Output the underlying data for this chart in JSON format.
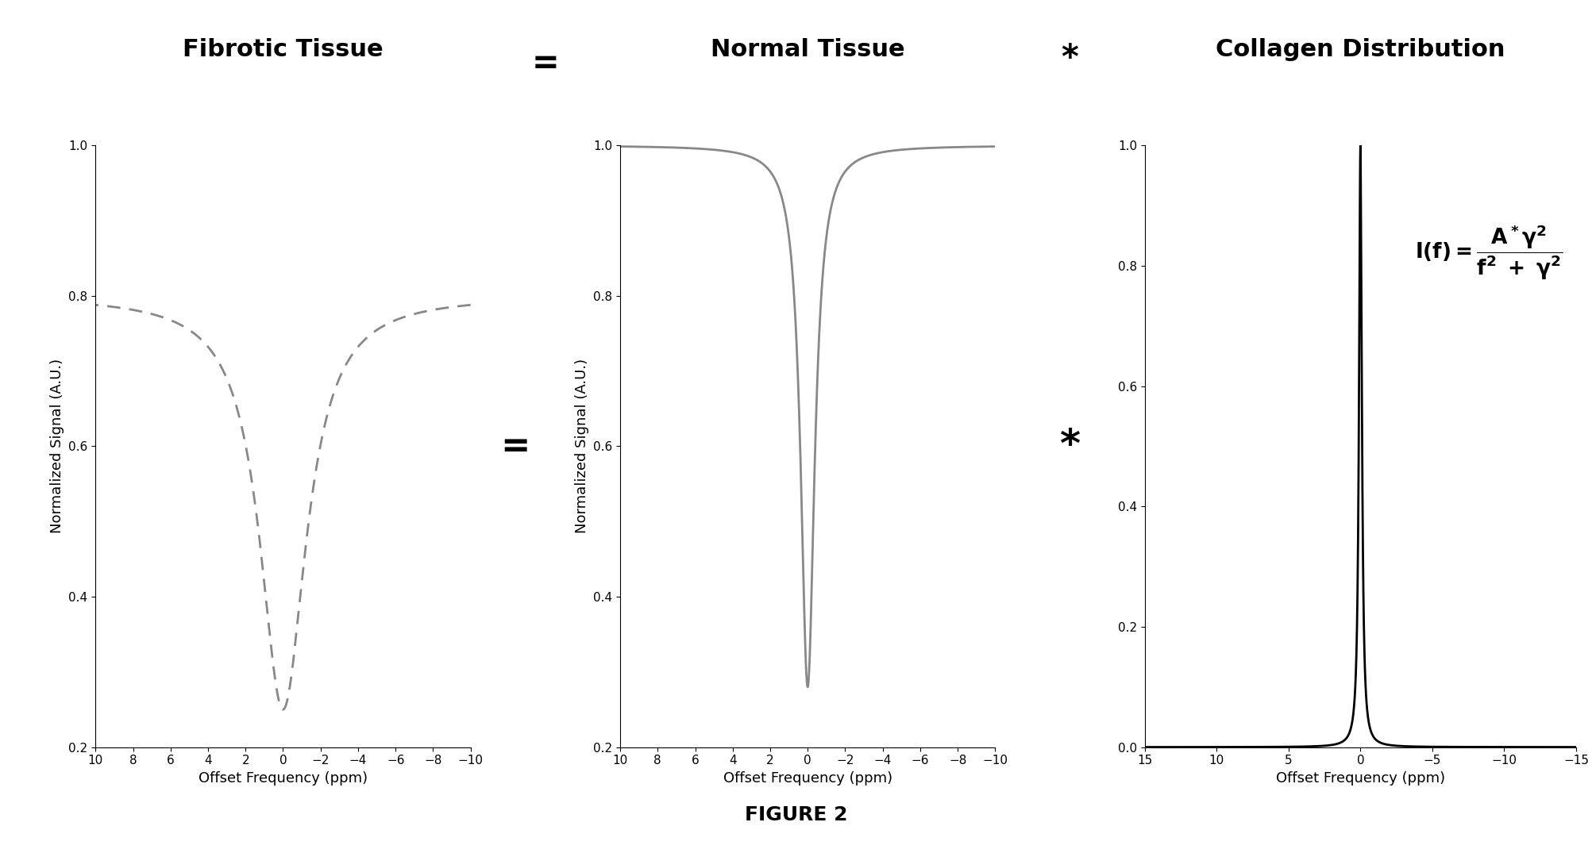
{
  "title1": "Fibrotic Tissue",
  "title2": "Normal Tissue",
  "title3": "Collagen Distribution",
  "xlabel": "Offset Frequency (ppm)",
  "ylabel": "Normalized Signal (A.U.)",
  "figure2_label": "FIGURE 2",
  "ylim1": [
    0.2,
    1.0
  ],
  "ylim2": [
    0.2,
    1.0
  ],
  "ylim3": [
    0.0,
    1.0
  ],
  "xlim1": [
    10,
    -10
  ],
  "xlim2": [
    10,
    -10
  ],
  "xlim3": [
    15,
    -15
  ],
  "yticks1": [
    0.2,
    0.4,
    0.6,
    0.8,
    1.0
  ],
  "yticks2": [
    0.2,
    0.4,
    0.6,
    0.8,
    1.0
  ],
  "yticks3": [
    0.0,
    0.2,
    0.4,
    0.6,
    0.8,
    1.0
  ],
  "xticks1": [
    10,
    8,
    6,
    4,
    2,
    0,
    -2,
    -4,
    -6,
    -8,
    -10
  ],
  "xticks2": [
    10,
    8,
    6,
    4,
    2,
    0,
    -2,
    -4,
    -6,
    -8,
    -10
  ],
  "xticks3": [
    15,
    10,
    5,
    0,
    -5,
    -10,
    -15
  ],
  "line_color1": "#888888",
  "line_color2": "#888888",
  "line_color3": "#000000",
  "background_color": "#ffffff",
  "title_fontsize": 22,
  "operator_fontsize": 30,
  "label_fontsize": 13,
  "tick_fontsize": 11,
  "formula_fontsize": 19,
  "figure2_fontsize": 18
}
